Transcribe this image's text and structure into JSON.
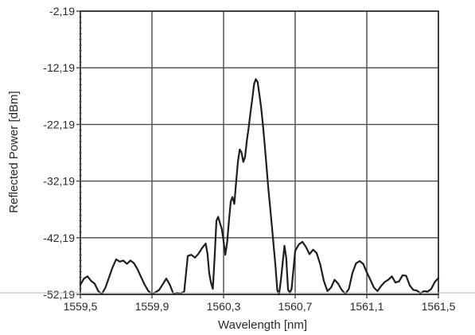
{
  "chart_data": {
    "type": "line",
    "xlabel": "Wavelength [nm]",
    "ylabel": "Reflected Power [dBm]",
    "xlim": [
      1559.5,
      1561.5
    ],
    "ylim": [
      -52.19,
      -2.19
    ],
    "x_ticks": [
      1559.5,
      1559.9,
      1560.3,
      1560.7,
      1561.1,
      1561.5
    ],
    "x_tick_labels": [
      "1559,5",
      "1559,9",
      "1560,3",
      "1560,7",
      "1561,1",
      "1561,5"
    ],
    "y_ticks": [
      -2.19,
      -12.19,
      -22.19,
      -32.19,
      -42.19,
      -52.19
    ],
    "y_tick_labels": [
      "-2,19",
      "-12,19",
      "-22,19",
      "-32,19",
      "-42,19",
      "-52,19"
    ],
    "grid": true,
    "series": [
      {
        "x": [
          1559.5,
          1559.52,
          1559.54,
          1559.56,
          1559.58,
          1559.6,
          1559.62,
          1559.64,
          1559.66,
          1559.68,
          1559.7,
          1559.72,
          1559.74,
          1559.76,
          1559.78,
          1559.8,
          1559.82,
          1559.84,
          1559.86,
          1559.88,
          1559.9,
          1559.92,
          1559.94,
          1559.96,
          1559.98,
          1560.0,
          1560.02,
          1560.04,
          1560.06,
          1560.08,
          1560.1,
          1560.12,
          1560.14,
          1560.16,
          1560.18,
          1560.19,
          1560.2,
          1560.21,
          1560.22,
          1560.23,
          1560.24,
          1560.25,
          1560.26,
          1560.27,
          1560.28,
          1560.29,
          1560.3,
          1560.31,
          1560.32,
          1560.33,
          1560.34,
          1560.35,
          1560.36,
          1560.37,
          1560.38,
          1560.39,
          1560.4,
          1560.41,
          1560.42,
          1560.43,
          1560.44,
          1560.45,
          1560.46,
          1560.47,
          1560.48,
          1560.49,
          1560.5,
          1560.51,
          1560.52,
          1560.53,
          1560.54,
          1560.55,
          1560.56,
          1560.57,
          1560.58,
          1560.59,
          1560.6,
          1560.61,
          1560.62,
          1560.63,
          1560.64,
          1560.65,
          1560.66,
          1560.67,
          1560.68,
          1560.7,
          1560.72,
          1560.74,
          1560.76,
          1560.78,
          1560.8,
          1560.82,
          1560.84,
          1560.86,
          1560.88,
          1560.9,
          1560.92,
          1560.94,
          1560.96,
          1560.98,
          1561.0,
          1561.02,
          1561.04,
          1561.06,
          1561.08,
          1561.1,
          1561.12,
          1561.14,
          1561.16,
          1561.18,
          1561.2,
          1561.22,
          1561.24,
          1561.26,
          1561.28,
          1561.3,
          1561.32,
          1561.34,
          1561.36,
          1561.38,
          1561.4,
          1561.42,
          1561.44,
          1561.46,
          1561.48,
          1561.5
        ],
        "y": [
          -50.5,
          -49.4,
          -49.0,
          -49.8,
          -50.3,
          -51.6,
          -52.1,
          -51.0,
          -49.2,
          -47.4,
          -46.0,
          -46.4,
          -46.2,
          -46.8,
          -46.2,
          -46.7,
          -47.8,
          -49.2,
          -50.5,
          -51.6,
          -52.1,
          -51.8,
          -51.4,
          -50.4,
          -49.4,
          -50.5,
          -52.1,
          -51.9,
          -52.0,
          -51.7,
          -45.4,
          -45.2,
          -45.7,
          -45.0,
          -44.0,
          -43.6,
          -43.2,
          -45.0,
          -48.5,
          -50.2,
          -51.2,
          -45.5,
          -39.2,
          -38.5,
          -39.6,
          -40.6,
          -42.8,
          -45.2,
          -43.0,
          -39.3,
          -35.8,
          -35.0,
          -36.2,
          -32.5,
          -28.8,
          -26.6,
          -27.1,
          -28.8,
          -27.9,
          -25.0,
          -22.8,
          -20.1,
          -17.8,
          -15.1,
          -14.2,
          -14.7,
          -16.9,
          -19.2,
          -22.3,
          -25.8,
          -29.6,
          -33.4,
          -36.8,
          -40.1,
          -43.7,
          -47.1,
          -51.4,
          -52.2,
          -49.7,
          -46.6,
          -43.6,
          -45.8,
          -51.3,
          -51.9,
          -51.2,
          -44.5,
          -43.4,
          -42.9,
          -43.8,
          -45.1,
          -44.3,
          -44.9,
          -46.9,
          -49.8,
          -51.6,
          -51.0,
          -49.6,
          -50.3,
          -51.4,
          -52.1,
          -51.2,
          -48.4,
          -46.7,
          -46.3,
          -46.8,
          -48.3,
          -49.6,
          -51.0,
          -51.6,
          -50.7,
          -50.0,
          -49.6,
          -49.0,
          -50.1,
          -49.9,
          -48.8,
          -48.9,
          -50.6,
          -51.4,
          -51.5,
          -52.0,
          -51.6,
          -51.7,
          -51.2,
          -50.0,
          -49.3
        ]
      }
    ]
  }
}
